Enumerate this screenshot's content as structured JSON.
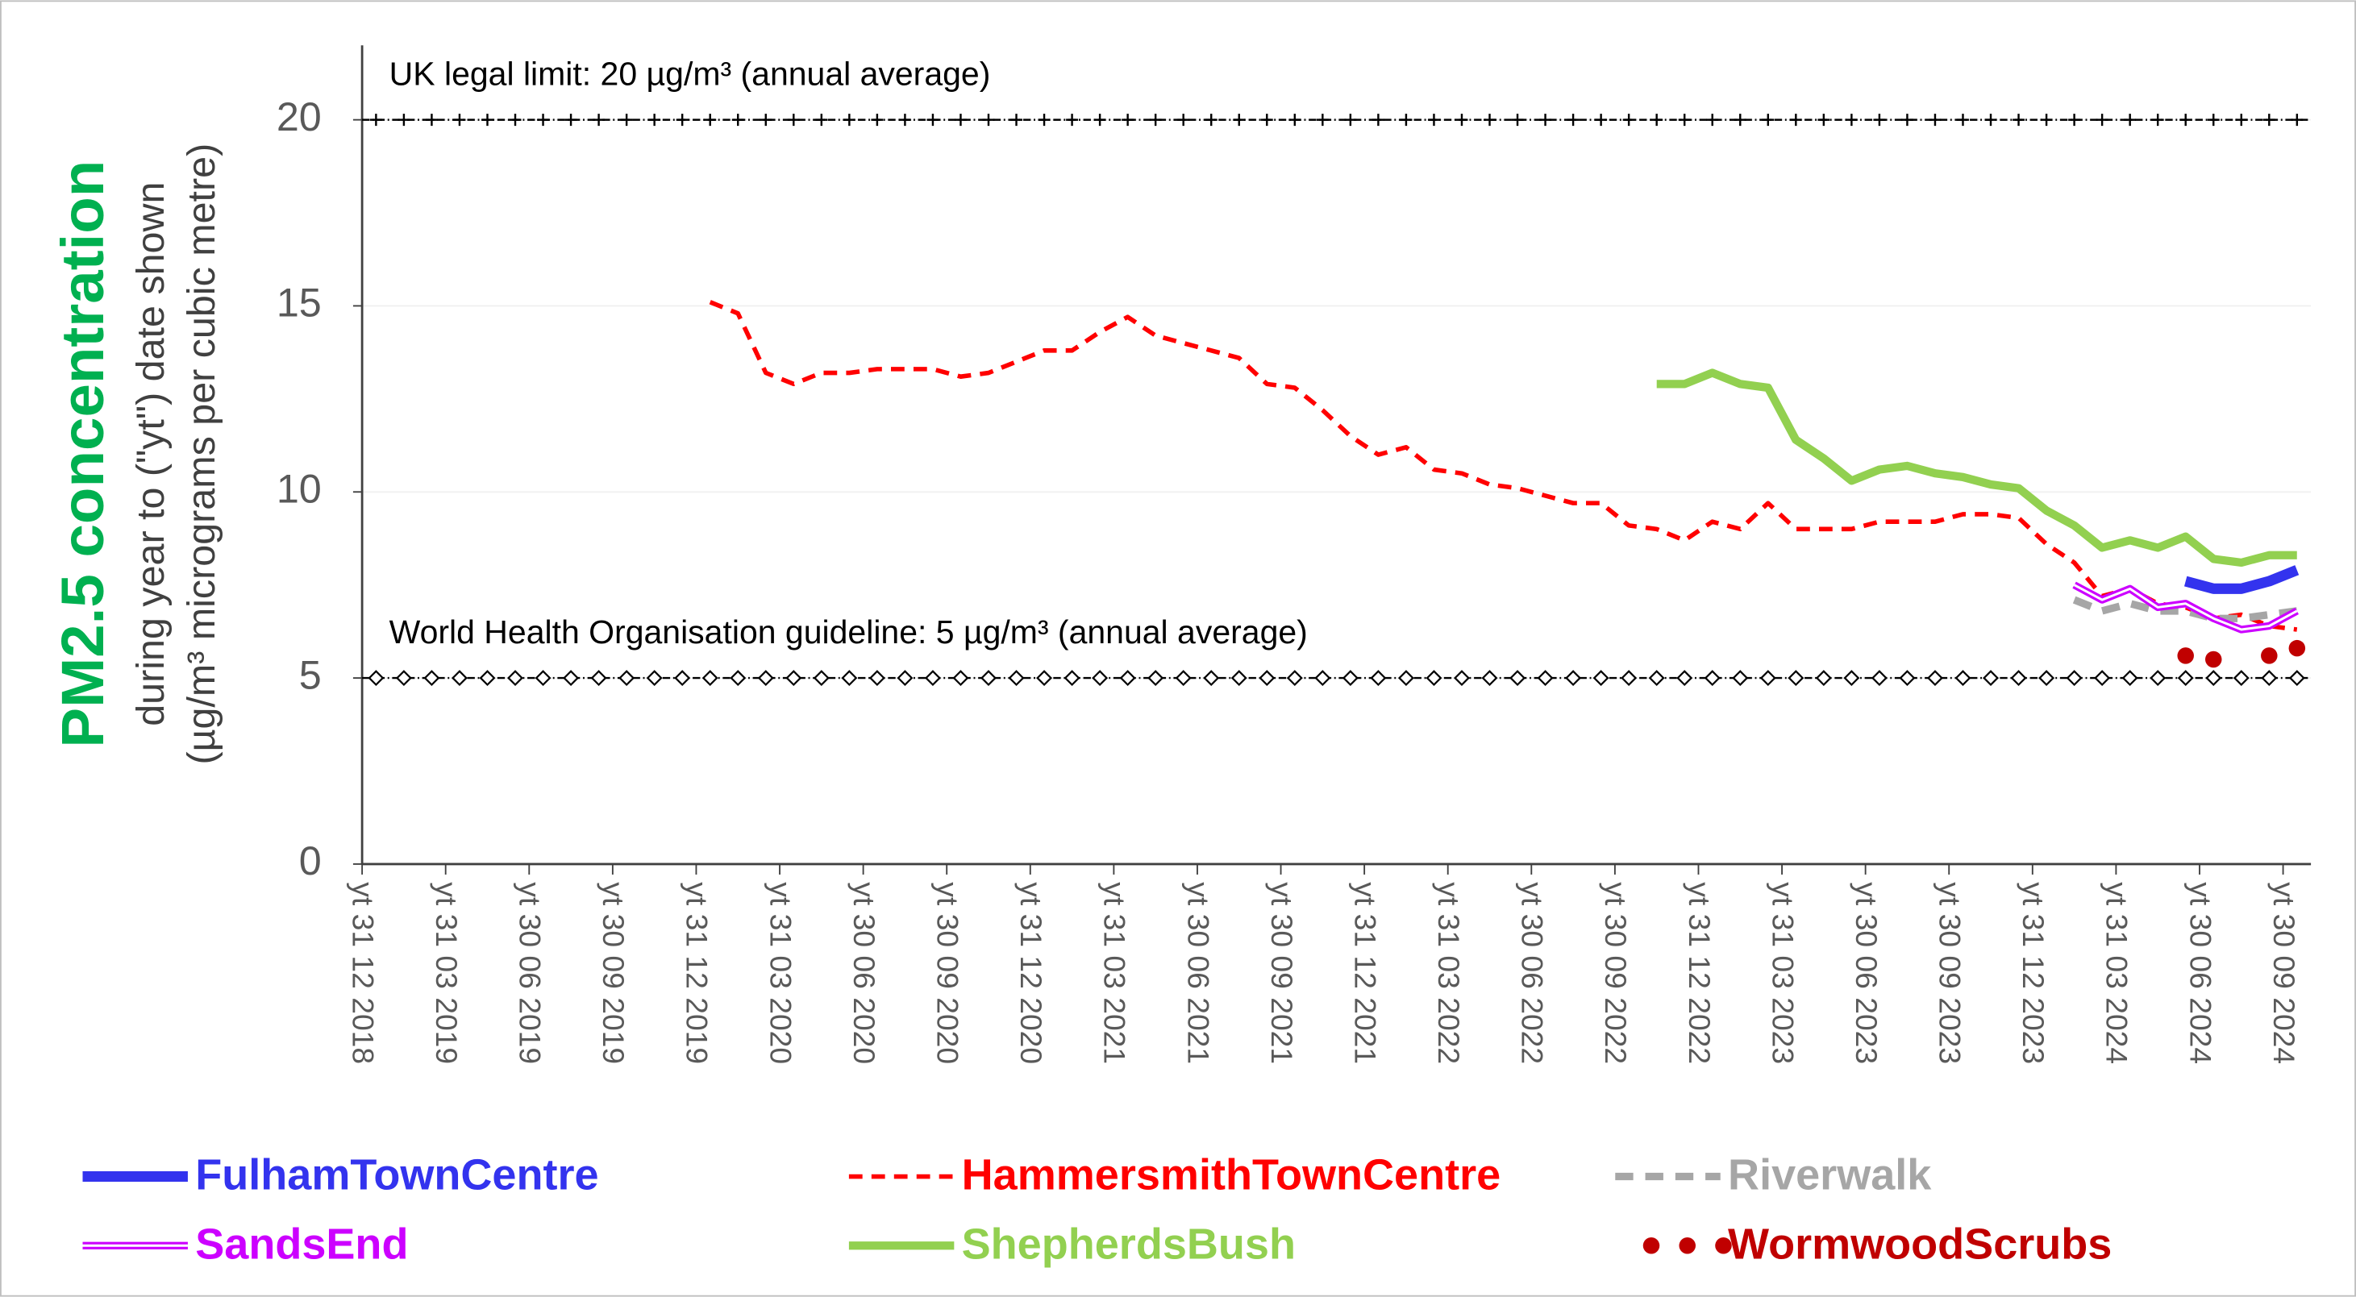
{
  "chart_data": {
    "type": "line",
    "ylabel": "PM2.5 concentration",
    "ylabel_sub": [
      "during year to (\"yt\") date shown",
      "(µg/m³ micrograms per cubic metre)"
    ],
    "categories": [
      "yt 31 12 2018",
      null,
      null,
      "yt 31 03 2019",
      null,
      null,
      "yt 30 06 2019",
      null,
      null,
      "yt 30 09 2019",
      null,
      null,
      "yt 31 12 2019",
      null,
      null,
      "yt 31 03 2020",
      null,
      null,
      "yt 30 06 2020",
      null,
      null,
      "yt 30 09 2020",
      null,
      null,
      "yt 31 12 2020",
      null,
      null,
      "yt 31 03 2021",
      null,
      null,
      "yt 30 06 2021",
      null,
      null,
      "yt 30 09 2021",
      null,
      null,
      "yt 31 12 2021",
      null,
      null,
      "yt 31 03 2022",
      null,
      null,
      "yt 30 06 2022",
      null,
      null,
      "yt 30 09 2022",
      null,
      null,
      "yt 31 12 2022",
      null,
      null,
      "yt 31 03 2023",
      null,
      null,
      "yt 30 06 2023",
      null,
      null,
      "yt 30 09 2023",
      null,
      null,
      "yt 31 12 2023",
      null,
      null,
      "yt 31 03 2024",
      null,
      null,
      "yt 30 06 2024",
      null,
      null,
      "yt 30 09 2024"
    ],
    "ylim": [
      0,
      22
    ],
    "yticks": [
      0,
      5,
      10,
      15,
      20
    ],
    "grid": true,
    "reference_lines": [
      {
        "label": "UK legal limit: 20 µg/m³ (annual average)",
        "value": 20,
        "marker": "plus"
      },
      {
        "label": "World Health Organisation guideline: 5 µg/m³ (annual average)",
        "value": 5,
        "marker": "diamond"
      }
    ],
    "series": [
      {
        "name": "FulhamTownCentre",
        "color": "#3333ee",
        "style": "solid",
        "values": [
          null,
          null,
          null,
          null,
          null,
          null,
          null,
          null,
          null,
          null,
          null,
          null,
          null,
          null,
          null,
          null,
          null,
          null,
          null,
          null,
          null,
          null,
          null,
          null,
          null,
          null,
          null,
          null,
          null,
          null,
          null,
          null,
          null,
          null,
          null,
          null,
          null,
          null,
          null,
          null,
          null,
          null,
          null,
          null,
          null,
          null,
          null,
          null,
          null,
          null,
          null,
          null,
          null,
          null,
          null,
          null,
          null,
          null,
          null,
          null,
          null,
          null,
          null,
          null,
          null,
          7.6,
          7.4,
          7.4,
          7.6,
          7.9
        ]
      },
      {
        "name": "HammersmithTownCentre",
        "color": "#ff0000",
        "style": "dash",
        "values": [
          null,
          null,
          null,
          null,
          null,
          null,
          null,
          null,
          null,
          null,
          null,
          null,
          15.1,
          14.8,
          13.2,
          12.9,
          13.2,
          13.2,
          13.3,
          13.3,
          13.3,
          13.1,
          13.2,
          13.5,
          13.8,
          13.8,
          14.3,
          14.7,
          14.2,
          14.0,
          13.8,
          13.6,
          12.9,
          12.8,
          12.2,
          11.5,
          11.0,
          11.2,
          10.6,
          10.5,
          10.2,
          10.1,
          9.9,
          9.7,
          9.7,
          9.1,
          9.0,
          8.7,
          9.2,
          9.0,
          9.7,
          9.0,
          9.0,
          9.0,
          9.2,
          9.2,
          9.2,
          9.4,
          9.4,
          9.3,
          8.6,
          8.1,
          7.2,
          7.4,
          7.0,
          6.9,
          6.6,
          6.7,
          6.4,
          6.3
        ]
      },
      {
        "name": "Riverwalk",
        "color": "#a6a6a6",
        "style": "dash",
        "values": [
          null,
          null,
          null,
          null,
          null,
          null,
          null,
          null,
          null,
          null,
          null,
          null,
          null,
          null,
          null,
          null,
          null,
          null,
          null,
          null,
          null,
          null,
          null,
          null,
          null,
          null,
          null,
          null,
          null,
          null,
          null,
          null,
          null,
          null,
          null,
          null,
          null,
          null,
          null,
          null,
          null,
          null,
          null,
          null,
          null,
          null,
          null,
          null,
          null,
          null,
          null,
          null,
          null,
          null,
          null,
          null,
          null,
          null,
          null,
          null,
          null,
          7.1,
          6.8,
          7.0,
          6.8,
          6.8,
          6.6,
          6.6,
          6.7,
          6.8
        ]
      },
      {
        "name": "SandsEnd",
        "color": "#cc00ff",
        "style": "double",
        "values": [
          null,
          null,
          null,
          null,
          null,
          null,
          null,
          null,
          null,
          null,
          null,
          null,
          null,
          null,
          null,
          null,
          null,
          null,
          null,
          null,
          null,
          null,
          null,
          null,
          null,
          null,
          null,
          null,
          null,
          null,
          null,
          null,
          null,
          null,
          null,
          null,
          null,
          null,
          null,
          null,
          null,
          null,
          null,
          null,
          null,
          null,
          null,
          null,
          null,
          null,
          null,
          null,
          null,
          null,
          null,
          null,
          null,
          null,
          null,
          null,
          null,
          7.5,
          7.1,
          7.4,
          6.9,
          7.0,
          6.6,
          6.3,
          6.4,
          6.8
        ]
      },
      {
        "name": "ShepherdsBush",
        "color": "#92d050",
        "style": "solid",
        "values": [
          null,
          null,
          null,
          null,
          null,
          null,
          null,
          null,
          null,
          null,
          null,
          null,
          null,
          null,
          null,
          null,
          null,
          null,
          null,
          null,
          null,
          null,
          null,
          null,
          null,
          null,
          null,
          null,
          null,
          null,
          null,
          null,
          null,
          null,
          null,
          null,
          null,
          null,
          null,
          null,
          null,
          null,
          null,
          null,
          null,
          null,
          12.9,
          12.9,
          13.2,
          12.9,
          12.8,
          11.4,
          10.9,
          10.3,
          10.6,
          10.7,
          10.5,
          10.4,
          10.2,
          10.1,
          9.5,
          9.1,
          8.5,
          8.7,
          8.5,
          8.8,
          8.2,
          8.1,
          8.3,
          8.3
        ]
      },
      {
        "name": "WormwoodScrubs",
        "color": "#c00000",
        "style": "dots",
        "values": [
          null,
          null,
          null,
          null,
          null,
          null,
          null,
          null,
          null,
          null,
          null,
          null,
          null,
          null,
          null,
          null,
          null,
          null,
          null,
          null,
          null,
          null,
          null,
          null,
          null,
          null,
          null,
          null,
          null,
          null,
          null,
          null,
          null,
          null,
          null,
          null,
          null,
          null,
          null,
          null,
          null,
          null,
          null,
          null,
          null,
          null,
          null,
          null,
          null,
          null,
          null,
          null,
          null,
          null,
          null,
          null,
          null,
          null,
          null,
          null,
          null,
          null,
          null,
          null,
          null,
          5.6,
          5.5,
          null,
          5.6,
          5.8
        ]
      }
    ]
  }
}
